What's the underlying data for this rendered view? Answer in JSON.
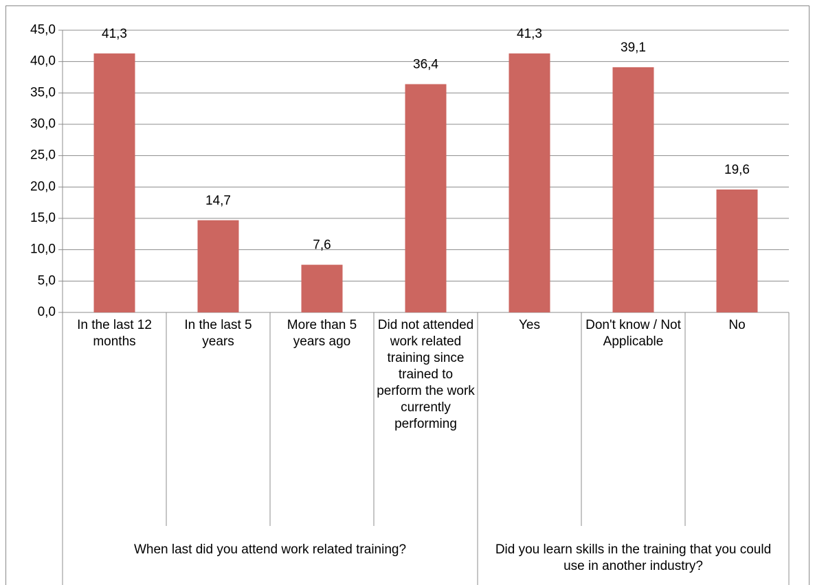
{
  "chart_data": {
    "type": "bar",
    "color": "#cc6660",
    "grid": true,
    "ylim": [
      0,
      45
    ],
    "yticks": [
      {
        "value": 0,
        "label": "0,0"
      },
      {
        "value": 5,
        "label": "5,0"
      },
      {
        "value": 10,
        "label": "10,0"
      },
      {
        "value": 15,
        "label": "15,0"
      },
      {
        "value": 20,
        "label": "20,0"
      },
      {
        "value": 25,
        "label": "25,0"
      },
      {
        "value": 30,
        "label": "30,0"
      },
      {
        "value": 35,
        "label": "35,0"
      },
      {
        "value": 40,
        "label": "40,0"
      },
      {
        "value": 45,
        "label": "45,0"
      }
    ],
    "groups": [
      {
        "name": "When last did you attend work related training?",
        "categories": [
          "In the last 12 months",
          "In the last 5 years",
          "More than 5 years ago",
          "Did not attended work related training since trained to perform the work currently performing"
        ]
      },
      {
        "name": "Did you learn skills in the training that you could use in another industry?",
        "categories": [
          "Yes",
          "Don't know  / Not Applicable",
          "No"
        ]
      }
    ],
    "values": [
      41.3,
      14.7,
      7.6,
      36.4,
      41.3,
      39.1,
      19.6
    ],
    "value_labels": [
      "41,3",
      "14,7",
      "7,6",
      "36,4",
      "41,3",
      "39,1",
      "19,6"
    ]
  }
}
